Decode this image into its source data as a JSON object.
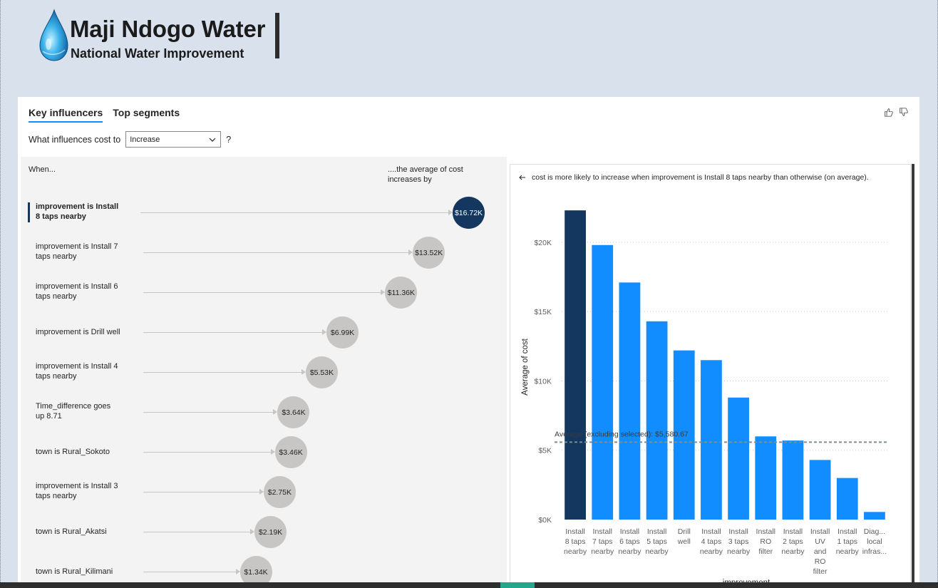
{
  "header": {
    "title": "Maji Ndogo Water",
    "subtitle": "National Water Improvement"
  },
  "visual": {
    "tabs": [
      {
        "label": "Key influencers",
        "active": true
      },
      {
        "label": "Top segments",
        "active": false
      }
    ],
    "question_prefix": "What influences cost to",
    "question_value": "Increase",
    "question_suffix": "?",
    "col_when": "When...",
    "col_avg": "....the average of cost increases by",
    "influencers": [
      {
        "label": "improvement is Install 8 taps nearby",
        "value": "$16.72K",
        "amount": 16.72,
        "selected": true
      },
      {
        "label": "improvement is Install 7 taps nearby",
        "value": "$13.52K",
        "amount": 13.52,
        "selected": false
      },
      {
        "label": "improvement is Install 6 taps nearby",
        "value": "$11.36K",
        "amount": 11.36,
        "selected": false
      },
      {
        "label": "improvement is Drill well",
        "value": "$6.99K",
        "amount": 6.99,
        "selected": false
      },
      {
        "label": "improvement is Install 4 taps nearby",
        "value": "$5.53K",
        "amount": 5.53,
        "selected": false
      },
      {
        "label": "Time_difference goes up 8.71",
        "value": "$3.64K",
        "amount": 3.64,
        "selected": false
      },
      {
        "label": "town is Rural_Sokoto",
        "value": "$3.46K",
        "amount": 3.46,
        "selected": false
      },
      {
        "label": "improvement is Install 3 taps nearby",
        "value": "$2.75K",
        "amount": 2.75,
        "selected": false
      },
      {
        "label": "town is Rural_Akatsi",
        "value": "$2.19K",
        "amount": 2.19,
        "selected": false
      },
      {
        "label": "town is Rural_Kilimani",
        "value": "$1.34K",
        "amount": 1.34,
        "selected": false
      }
    ],
    "chart_header": "cost is more likely to increase when improvement is Install 8 taps nearby than otherwise (on average)."
  },
  "colors": {
    "selected": "#13375f",
    "bar": "#118dff",
    "bubble": "#c8c6c4",
    "background": "#d8e1ec"
  },
  "chart_data": {
    "type": "bar",
    "ylabel": "Average of cost",
    "xlabel": "improvement",
    "ylim": [
      0,
      22000
    ],
    "yticks": [
      {
        "value": 0,
        "label": "$0K"
      },
      {
        "value": 5000,
        "label": "$5K"
      },
      {
        "value": 10000,
        "label": "$10K"
      },
      {
        "value": 15000,
        "label": "$15K"
      },
      {
        "value": 20000,
        "label": "$20K"
      }
    ],
    "categories": [
      [
        "Install",
        "8 taps",
        "nearby"
      ],
      [
        "Install",
        "7 taps",
        "nearby"
      ],
      [
        "Install",
        "6 taps",
        "nearby"
      ],
      [
        "Install",
        "5 taps",
        "nearby"
      ],
      [
        "Drill",
        "well"
      ],
      [
        "Install",
        "4 taps",
        "nearby"
      ],
      [
        "Install",
        "3 taps",
        "nearby"
      ],
      [
        "Install",
        "RO",
        "filter"
      ],
      [
        "Install",
        "2 taps",
        "nearby"
      ],
      [
        "Install",
        "UV",
        "and",
        "RO",
        "filter"
      ],
      [
        "Install",
        "1 taps",
        "nearby"
      ],
      [
        "Diag...",
        "local",
        "infras..."
      ]
    ],
    "values": [
      22300,
      19800,
      17100,
      14300,
      12200,
      11500,
      8800,
      6000,
      5700,
      4300,
      3000,
      550
    ],
    "selected_index": 0,
    "reference_line": {
      "value": 5580.67,
      "label": "Average (excluding selected): $5,580.67"
    },
    "grid": true
  }
}
